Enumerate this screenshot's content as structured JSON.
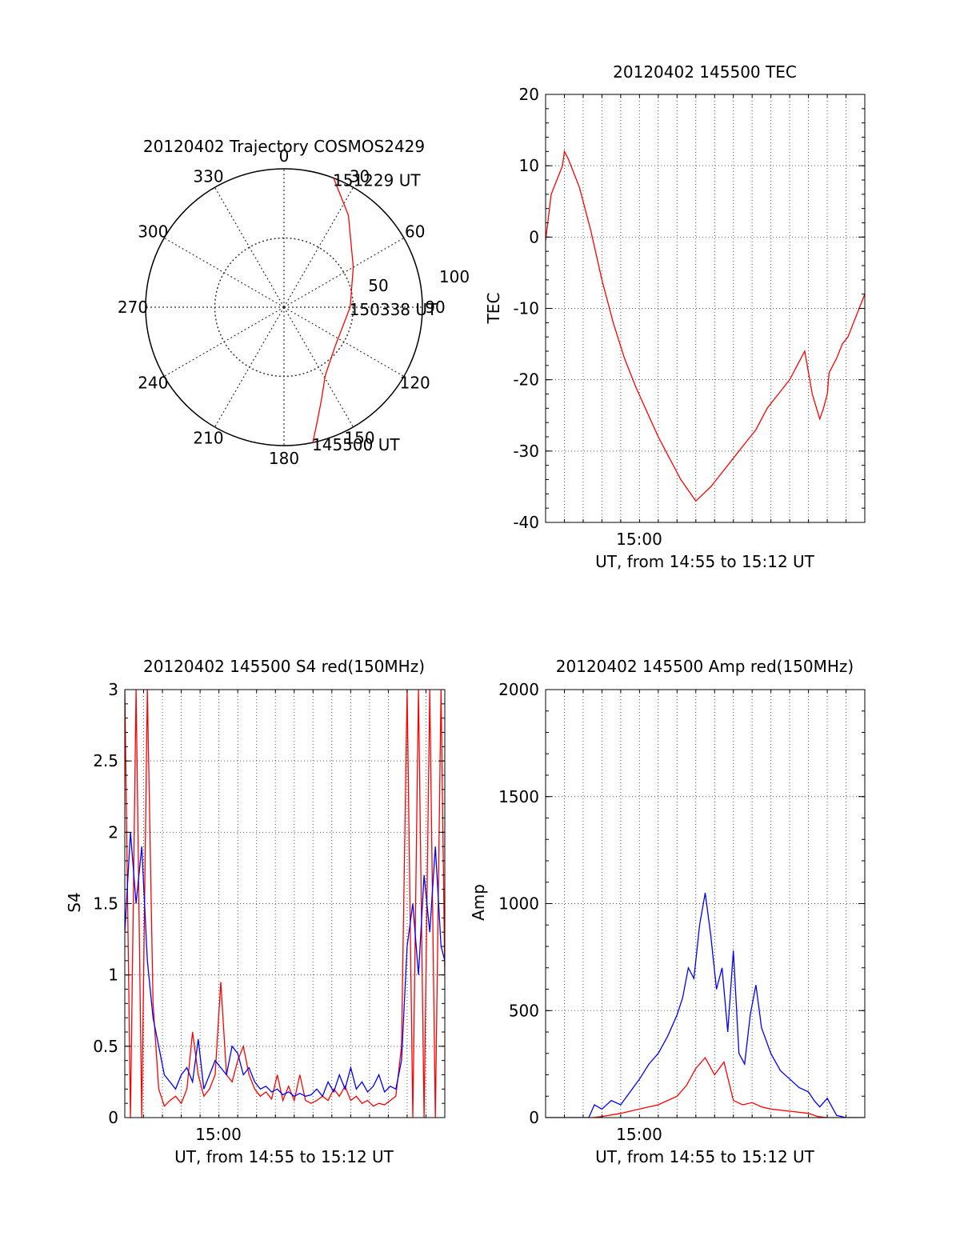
{
  "chart_data": [
    {
      "type": "polar-trajectory",
      "title": "20120402 Trajectory COSMOS2429",
      "angle_labels": [
        "0",
        "30",
        "60",
        "90",
        "120",
        "150",
        "180",
        "210",
        "240",
        "270",
        "300",
        "330"
      ],
      "radial_labels": [
        "50",
        "100"
      ],
      "grid": true,
      "series": [
        {
          "color": "#ff0000",
          "points": [
            {
              "az": 168,
              "el": 0
            },
            {
              "az": 164,
              "el": 12
            },
            {
              "az": 158,
              "el": 25
            },
            {
              "az": 149,
              "el": 38
            },
            {
              "az": 128,
              "el": 48
            },
            {
              "az": 90,
              "el": 47
            },
            {
              "az": 60,
              "el": 38
            },
            {
              "az": 35,
              "el": 17
            },
            {
              "az": 21,
              "el": 0
            }
          ]
        }
      ],
      "annotations": [
        {
          "text": "151229 UT",
          "az": 21,
          "el": 0
        },
        {
          "text": "150338 UT",
          "az": 90,
          "el": 47
        },
        {
          "text": "145500 UT",
          "az": 168,
          "el": 0
        }
      ]
    },
    {
      "type": "line",
      "title": "20120402 145500 TEC",
      "xlabel": "UT, from 14:55 to 15:12 UT",
      "ylabel": "TEC",
      "x_tick_labels": [
        "15:00"
      ],
      "xlim": [
        0,
        17
      ],
      "ylim": [
        -40,
        20
      ],
      "y_ticks": [
        -40,
        -30,
        -20,
        -10,
        0,
        10,
        20
      ],
      "grid": true,
      "series": [
        {
          "color": "#ff0000",
          "x": [
            0,
            0.3,
            0.6,
            0.9,
            1.0,
            1.2,
            1.5,
            1.8,
            2.4,
            3.0,
            3.6,
            4.2,
            4.8,
            5.4,
            6.0,
            6.6,
            7.2,
            7.6,
            8.0,
            8.4,
            8.8,
            9.4,
            10.0,
            10.6,
            11.2,
            11.8,
            12.4,
            13.0,
            13.4,
            13.8,
            14.2,
            14.6,
            14.8,
            15.0,
            15.1,
            15.3,
            15.5,
            15.8,
            16.1,
            16.4,
            16.7,
            17.0
          ],
          "y": [
            -0.5,
            6,
            8,
            10,
            12,
            11,
            9,
            7,
            1,
            -6,
            -12,
            -17,
            -21,
            -24.5,
            -28,
            -31,
            -34,
            -35.5,
            -37,
            -36,
            -35,
            -33,
            -31,
            -29,
            -27,
            -24,
            -22,
            -20,
            -18,
            -16,
            -22,
            -25.5,
            -24,
            -22,
            -19,
            -18,
            -17,
            -15,
            -14,
            -12,
            -10,
            -8
          ]
        }
      ]
    },
    {
      "type": "line",
      "title": "20120402 145500 S4 red(150MHz)",
      "xlabel": "UT, from 14:55 to 15:12 UT",
      "ylabel": "S4",
      "x_tick_labels": [
        "15:00"
      ],
      "xlim": [
        0,
        17
      ],
      "ylim": [
        0,
        3
      ],
      "y_ticks": [
        0,
        0.5,
        1,
        1.5,
        2,
        2.5,
        3
      ],
      "grid": true,
      "series": [
        {
          "color": "#ff0000",
          "x": [
            0,
            0.3,
            0.6,
            0.9,
            1.2,
            1.5,
            1.8,
            2.1,
            2.4,
            2.7,
            3.0,
            3.3,
            3.6,
            3.9,
            4.2,
            4.5,
            4.8,
            5.1,
            5.4,
            5.7,
            6.0,
            6.3,
            6.6,
            6.9,
            7.2,
            7.5,
            7.8,
            8.1,
            8.4,
            8.7,
            9.0,
            9.3,
            9.6,
            9.9,
            10.2,
            10.5,
            10.8,
            11.1,
            11.4,
            11.7,
            12.0,
            12.3,
            12.6,
            12.9,
            13.2,
            13.5,
            13.8,
            14.1,
            14.4,
            14.7,
            15.0,
            15.3,
            15.6,
            15.9,
            16.2,
            16.5,
            16.8,
            17.0
          ],
          "y": [
            3.0,
            0.0,
            3.0,
            0.0,
            3.0,
            0.8,
            0.2,
            0.08,
            0.12,
            0.15,
            0.1,
            0.2,
            0.6,
            0.3,
            0.15,
            0.2,
            0.3,
            0.95,
            0.3,
            0.25,
            0.4,
            0.5,
            0.3,
            0.2,
            0.15,
            0.18,
            0.13,
            0.3,
            0.12,
            0.22,
            0.12,
            0.3,
            0.12,
            0.1,
            0.12,
            0.15,
            0.12,
            0.2,
            0.15,
            0.22,
            0.12,
            0.15,
            0.1,
            0.12,
            0.08,
            0.1,
            0.09,
            0.12,
            0.15,
            0.5,
            3.0,
            0.0,
            3.0,
            0.0,
            3.0,
            0.0,
            3.0,
            1.0
          ]
        },
        {
          "color": "#0000ff",
          "x": [
            0,
            0.3,
            0.6,
            0.9,
            1.2,
            1.5,
            1.8,
            2.1,
            2.4,
            2.7,
            3.0,
            3.3,
            3.6,
            3.9,
            4.2,
            4.5,
            4.8,
            5.1,
            5.4,
            5.7,
            6.0,
            6.3,
            6.6,
            6.9,
            7.2,
            7.5,
            7.8,
            8.1,
            8.4,
            8.7,
            9.0,
            9.3,
            9.6,
            9.9,
            10.2,
            10.5,
            10.8,
            11.1,
            11.4,
            11.7,
            12.0,
            12.3,
            12.6,
            12.9,
            13.2,
            13.5,
            13.8,
            14.1,
            14.4,
            14.7,
            15.0,
            15.3,
            15.6,
            15.9,
            16.2,
            16.5,
            16.8,
            17.0
          ],
          "y": [
            1.3,
            2.0,
            1.5,
            1.9,
            1.1,
            0.7,
            0.5,
            0.3,
            0.25,
            0.2,
            0.3,
            0.35,
            0.25,
            0.55,
            0.2,
            0.3,
            0.4,
            0.35,
            0.3,
            0.5,
            0.45,
            0.3,
            0.35,
            0.25,
            0.2,
            0.22,
            0.18,
            0.2,
            0.16,
            0.18,
            0.15,
            0.17,
            0.15,
            0.16,
            0.2,
            0.15,
            0.25,
            0.18,
            0.3,
            0.2,
            0.35,
            0.2,
            0.25,
            0.18,
            0.22,
            0.3,
            0.18,
            0.22,
            0.2,
            0.4,
            1.2,
            1.5,
            1.0,
            1.7,
            1.3,
            1.9,
            1.2,
            1.1
          ]
        }
      ]
    },
    {
      "type": "line",
      "title": "20120402 145500 Amp red(150MHz)",
      "xlabel": "UT, from 14:55 to 15:12 UT",
      "ylabel": "Amp",
      "x_tick_labels": [
        "15:00"
      ],
      "xlim": [
        0,
        17
      ],
      "ylim": [
        0,
        2000
      ],
      "y_ticks": [
        0,
        500,
        1000,
        1500,
        2000
      ],
      "grid": true,
      "series": [
        {
          "color": "#ff0000",
          "x": [
            0,
            2.5,
            3.0,
            4.0,
            5.0,
            6.0,
            7.0,
            7.5,
            8.0,
            8.5,
            9.0,
            9.5,
            10.0,
            10.5,
            11.0,
            11.5,
            12.0,
            13.0,
            14.0,
            14.5,
            15.0,
            15.5,
            17.0
          ],
          "y": [
            0,
            0,
            5,
            20,
            40,
            60,
            100,
            150,
            230,
            280,
            200,
            260,
            80,
            60,
            70,
            50,
            40,
            30,
            20,
            5,
            0,
            0,
            0
          ]
        },
        {
          "color": "#0000ff",
          "x": [
            0,
            2.3,
            2.6,
            3.0,
            3.5,
            4.0,
            4.5,
            5.0,
            5.5,
            6.0,
            6.5,
            7.0,
            7.3,
            7.6,
            7.9,
            8.2,
            8.5,
            8.8,
            9.1,
            9.4,
            9.7,
            10.0,
            10.3,
            10.6,
            10.9,
            11.2,
            11.5,
            12.0,
            12.5,
            13.0,
            13.5,
            14.0,
            14.3,
            14.6,
            15.0,
            15.5,
            16.0,
            17.0
          ],
          "y": [
            0,
            0,
            60,
            40,
            80,
            60,
            120,
            180,
            250,
            300,
            380,
            480,
            560,
            700,
            650,
            900,
            1050,
            850,
            600,
            700,
            400,
            780,
            300,
            250,
            480,
            620,
            420,
            300,
            220,
            180,
            140,
            120,
            80,
            50,
            90,
            10,
            0,
            0
          ]
        }
      ]
    }
  ]
}
